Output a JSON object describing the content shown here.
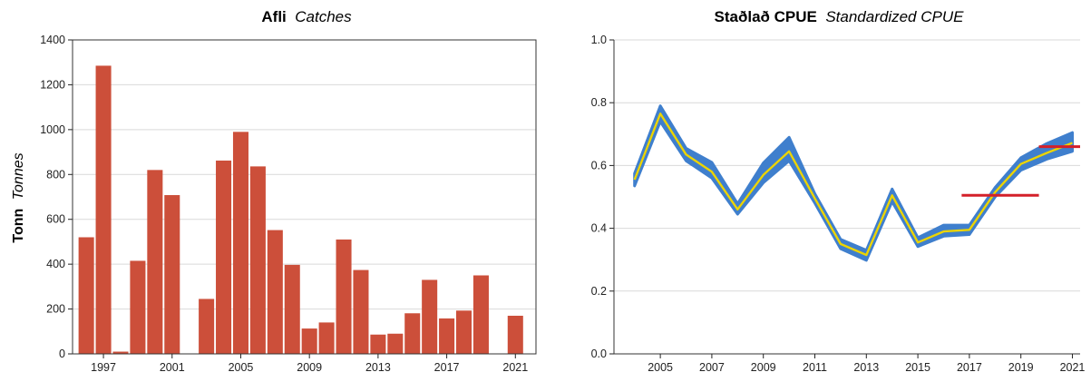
{
  "chart_data": [
    {
      "type": "bar",
      "title": "Afli",
      "subtitle": "Catches",
      "ylabel": "Tonn",
      "ylabel_sub": "Tonnes",
      "xlabel": "",
      "ylim": [
        0,
        1400
      ],
      "yticks": [
        0,
        200,
        400,
        600,
        800,
        1000,
        1200,
        1400
      ],
      "xticks": [
        1997,
        2001,
        2005,
        2009,
        2013,
        2017,
        2021
      ],
      "xlim": [
        1995.2,
        2022.2
      ],
      "grid": true,
      "color": "#cc4f3a",
      "categories": [
        1996,
        1997,
        1998,
        1999,
        2000,
        2001,
        2002,
        2003,
        2004,
        2005,
        2006,
        2007,
        2008,
        2009,
        2010,
        2011,
        2012,
        2013,
        2014,
        2015,
        2016,
        2017,
        2018,
        2019,
        2020,
        2021
      ],
      "values": [
        520,
        1285,
        10,
        415,
        820,
        708,
        0,
        245,
        862,
        990,
        836,
        552,
        397,
        113,
        140,
        510,
        374,
        86,
        90,
        181,
        330,
        158,
        193,
        350,
        0,
        170
      ]
    },
    {
      "type": "line",
      "title": "Staðlað CPUE",
      "subtitle": "Standardized CPUE",
      "xlabel": "",
      "ylabel": "",
      "ylim": [
        0,
        1.0
      ],
      "yticks": [
        "0.0",
        "0.2",
        "0.4",
        "0.6",
        "0.8",
        "1.0"
      ],
      "xticks": [
        2005,
        2007,
        2009,
        2011,
        2013,
        2015,
        2017,
        2019,
        2021
      ],
      "xlim": [
        2003.2,
        2021.3
      ],
      "grid": true,
      "series": [
        {
          "color": "#ecd400",
          "band_color": "#3f7fcd",
          "x": [
            2004,
            2005,
            2006,
            2007,
            2008,
            2009,
            2010,
            2011,
            2012,
            2013,
            2014,
            2015,
            2016,
            2017,
            2018,
            2019,
            2020,
            2021
          ],
          "y": [
            0.555,
            0.765,
            0.635,
            0.58,
            0.46,
            0.57,
            0.645,
            0.495,
            0.35,
            0.315,
            0.505,
            0.355,
            0.39,
            0.395,
            0.515,
            0.605,
            0.64,
            0.672
          ],
          "lower": [
            0.535,
            0.74,
            0.615,
            0.56,
            0.445,
            0.545,
            0.615,
            0.48,
            0.335,
            0.298,
            0.485,
            0.342,
            0.375,
            0.38,
            0.5,
            0.585,
            0.62,
            0.645
          ],
          "upper": [
            0.575,
            0.79,
            0.655,
            0.61,
            0.478,
            0.608,
            0.69,
            0.51,
            0.365,
            0.33,
            0.525,
            0.37,
            0.41,
            0.41,
            0.53,
            0.625,
            0.67,
            0.705
          ]
        }
      ],
      "reference_lines": [
        {
          "color": "#d4202a",
          "x_start": 2016.7,
          "x_end": 2019.7,
          "y": 0.505
        },
        {
          "color": "#d4202a",
          "x_start": 2019.7,
          "x_end": 2021.3,
          "y": 0.66
        }
      ]
    }
  ]
}
